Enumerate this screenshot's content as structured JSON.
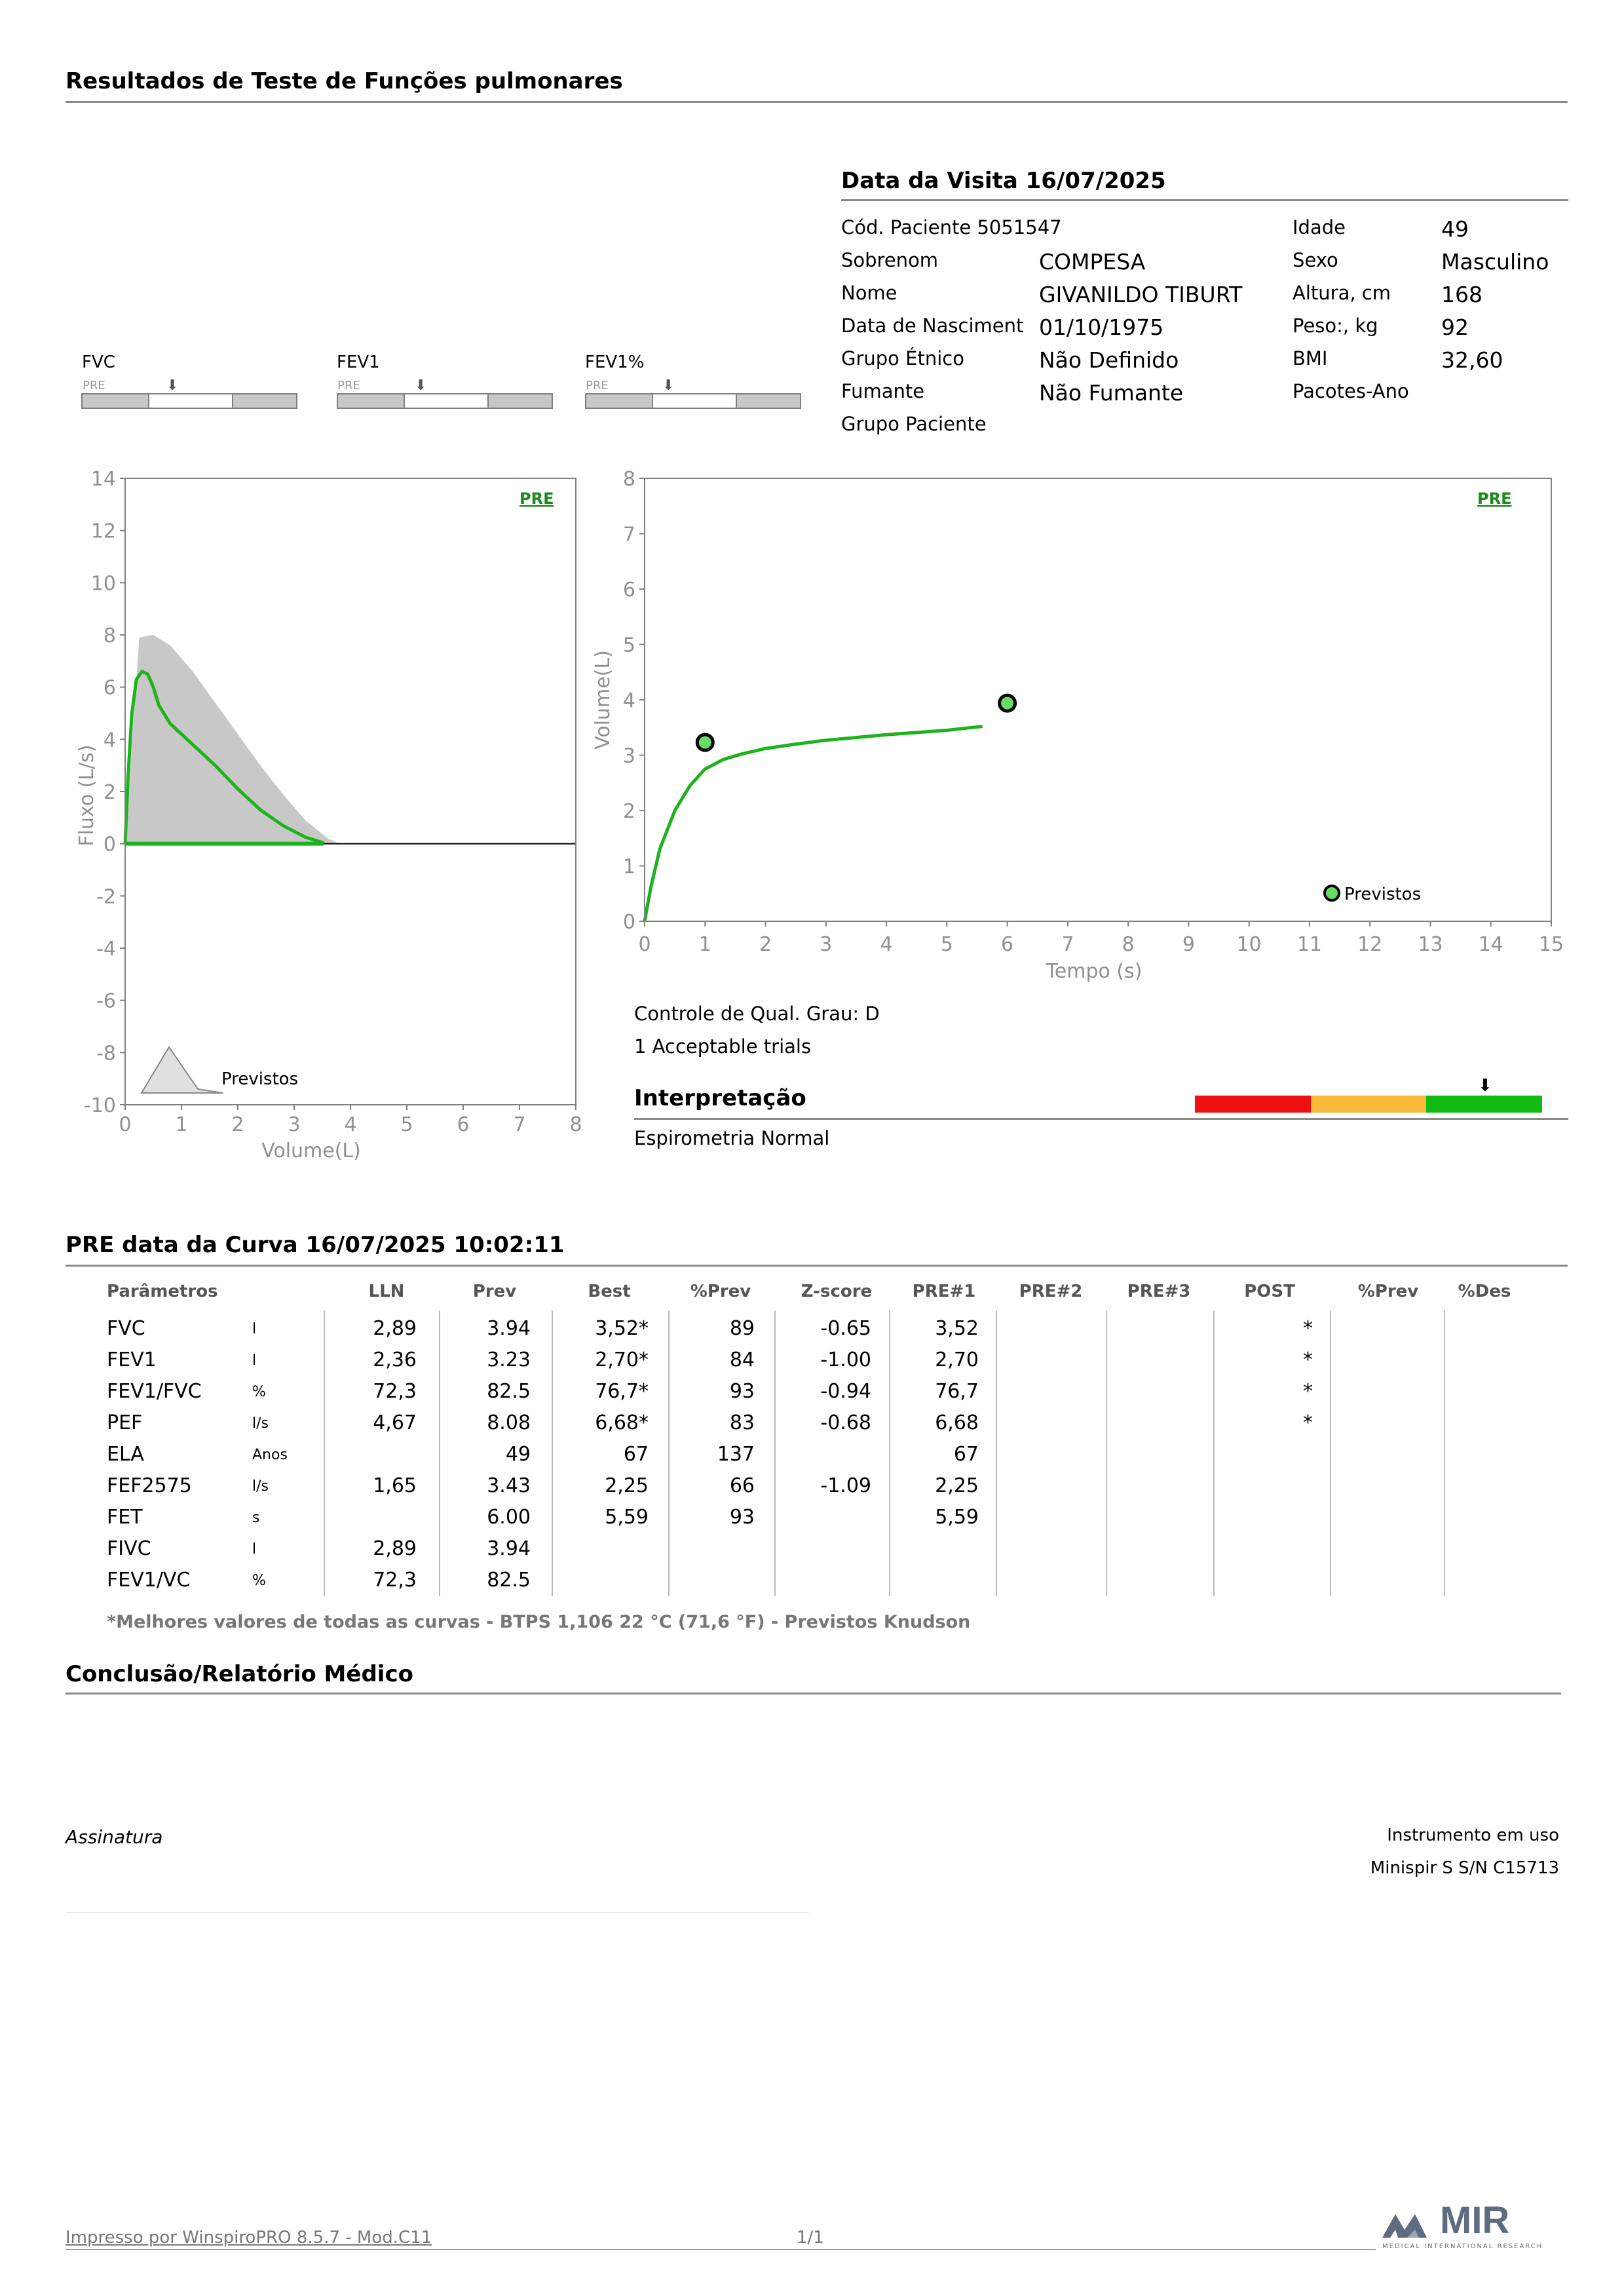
{
  "page_title": "Resultados de Teste de Funções pulmonares",
  "visit": {
    "title": "Data da Visita 16/07/2025",
    "fields_left": [
      {
        "label": "Cód. Paciente 5051547",
        "value": ""
      },
      {
        "label": "Sobrenom",
        "value": "COMPESA"
      },
      {
        "label": "Nome",
        "value": "GIVANILDO TIBURT"
      },
      {
        "label": "Data de Nasciment",
        "value": "01/10/1975"
      },
      {
        "label": "Grupo Étnico",
        "value": "Não Definido"
      },
      {
        "label": "Fumante",
        "value": "Não Fumante"
      },
      {
        "label": "Grupo Paciente",
        "value": ""
      }
    ],
    "fields_right": [
      {
        "label": "Idade",
        "value": "49"
      },
      {
        "label": "Sexo",
        "value": "Masculino"
      },
      {
        "label": "Altura, cm",
        "value": "168"
      },
      {
        "label": "Peso:, kg",
        "value": "92"
      },
      {
        "label": "BMI",
        "value": "32,60"
      },
      {
        "label": "Pacotes-Ano",
        "value": ""
      }
    ]
  },
  "indicators": [
    {
      "name": "FVC",
      "tag": "PRE"
    },
    {
      "name": "FEV1",
      "tag": "PRE"
    },
    {
      "name": "FEV1%",
      "tag": "PRE"
    }
  ],
  "chart_data": [
    {
      "type": "line",
      "title": "",
      "tag": "PRE",
      "xlabel": "Volume(L)",
      "ylabel": "Fluxo (L/s)",
      "xlim": [
        0,
        8
      ],
      "ylim": [
        -10,
        14
      ],
      "x_ticks": [
        "0",
        "1",
        "2",
        "3",
        "4",
        "5",
        "6",
        "7",
        "8"
      ],
      "y_ticks": [
        "14",
        "12",
        "10",
        "8",
        "6",
        "4",
        "2",
        "0",
        "-2",
        "-4",
        "-6",
        "-8",
        "-10"
      ],
      "legend": "Previstos",
      "series": [
        {
          "name": "Previstos",
          "color": "#c8c8c8",
          "x": [
            0,
            0.25,
            0.5,
            0.8,
            1.2,
            1.6,
            2.0,
            2.4,
            2.8,
            3.2,
            3.6,
            3.8
          ],
          "y": [
            0,
            7.9,
            8.0,
            7.6,
            6.6,
            5.4,
            4.2,
            3.0,
            1.9,
            0.9,
            0.2,
            0
          ]
        },
        {
          "name": "",
          "color": "#1db31d",
          "x": [
            0,
            0.05,
            0.12,
            0.2,
            0.3,
            0.4,
            0.5,
            0.6,
            0.8,
            1.0,
            1.3,
            1.6,
            2.0,
            2.4,
            2.8,
            3.2,
            3.5,
            3.52
          ],
          "y": [
            0,
            2.5,
            5.0,
            6.3,
            6.6,
            6.5,
            6.0,
            5.3,
            4.6,
            4.2,
            3.6,
            3.0,
            2.1,
            1.3,
            0.7,
            0.25,
            0.05,
            0
          ]
        }
      ]
    },
    {
      "type": "line",
      "title": "",
      "tag": "PRE",
      "xlabel": "Tempo (s)",
      "ylabel": "Volume(L)",
      "xlim": [
        0,
        15
      ],
      "ylim": [
        0,
        8
      ],
      "x_ticks": [
        "0",
        "1",
        "2",
        "3",
        "4",
        "5",
        "6",
        "7",
        "8",
        "9",
        "10",
        "11",
        "12",
        "13",
        "14",
        "15"
      ],
      "y_ticks": [
        "8",
        "7",
        "6",
        "5",
        "4",
        "3",
        "2",
        "1",
        "0"
      ],
      "legend": "Previstos",
      "series": [
        {
          "name": "",
          "color": "#1db31d",
          "x": [
            0,
            0.1,
            0.25,
            0.5,
            0.75,
            1.0,
            1.3,
            1.6,
            2.0,
            2.5,
            3.0,
            3.5,
            4.0,
            4.5,
            5.0,
            5.59
          ],
          "y": [
            0,
            0.6,
            1.3,
            2.0,
            2.45,
            2.75,
            2.92,
            3.02,
            3.12,
            3.2,
            3.27,
            3.32,
            3.37,
            3.41,
            3.45,
            3.52
          ]
        }
      ],
      "markers": [
        {
          "x": 1.0,
          "y": 3.23
        },
        {
          "x": 6.0,
          "y": 3.94
        }
      ]
    }
  ],
  "quality": {
    "grade": "Controle de Qual. Grau: D",
    "trials": "1 Acceptable trials"
  },
  "interpretation": {
    "title": "Interpretação",
    "text": "Espirometria Normal",
    "scale_colors": [
      "#ee1111",
      "#f9b93b",
      "#12bb12"
    ]
  },
  "curve": {
    "title": "PRE data da Curva 16/07/2025   10:02:11",
    "headers": [
      "Parâmetros",
      "LLN",
      "Prev",
      "Best",
      "%Prev",
      "Z-score",
      "PRE#1",
      "PRE#2",
      "PRE#3",
      "POST",
      "%Prev",
      "%Des"
    ],
    "rows": [
      {
        "param": "FVC",
        "unit": "l",
        "lln": "2,89",
        "prev": "3.94",
        "best": "3,52*",
        "pprev": "89",
        "z": "-0.65",
        "pre1": "3,52",
        "pre2": "",
        "pre3": "",
        "post": "*",
        "pprev2": "",
        "pdes": ""
      },
      {
        "param": "FEV1",
        "unit": "l",
        "lln": "2,36",
        "prev": "3.23",
        "best": "2,70*",
        "pprev": "84",
        "z": "-1.00",
        "pre1": "2,70",
        "pre2": "",
        "pre3": "",
        "post": "*",
        "pprev2": "",
        "pdes": ""
      },
      {
        "param": "FEV1/FVC",
        "unit": "%",
        "lln": "72,3",
        "prev": "82.5",
        "best": "76,7*",
        "pprev": "93",
        "z": "-0.94",
        "pre1": "76,7",
        "pre2": "",
        "pre3": "",
        "post": "*",
        "pprev2": "",
        "pdes": ""
      },
      {
        "param": "PEF",
        "unit": "l/s",
        "lln": "4,67",
        "prev": "8.08",
        "best": "6,68*",
        "pprev": "83",
        "z": "-0.68",
        "pre1": "6,68",
        "pre2": "",
        "pre3": "",
        "post": "*",
        "pprev2": "",
        "pdes": ""
      },
      {
        "param": "ELA",
        "unit": "Anos",
        "lln": "",
        "prev": "49",
        "best": "67",
        "pprev": "137",
        "z": "",
        "pre1": "67",
        "pre2": "",
        "pre3": "",
        "post": "",
        "pprev2": "",
        "pdes": ""
      },
      {
        "param": "FEF2575",
        "unit": "l/s",
        "lln": "1,65",
        "prev": "3.43",
        "best": "2,25",
        "pprev": "66",
        "z": "-1.09",
        "pre1": "2,25",
        "pre2": "",
        "pre3": "",
        "post": "",
        "pprev2": "",
        "pdes": ""
      },
      {
        "param": "FET",
        "unit": "s",
        "lln": "",
        "prev": "6.00",
        "best": "5,59",
        "pprev": "93",
        "z": "",
        "pre1": "5,59",
        "pre2": "",
        "pre3": "",
        "post": "",
        "pprev2": "",
        "pdes": ""
      },
      {
        "param": "FIVC",
        "unit": "l",
        "lln": "2,89",
        "prev": "3.94",
        "best": "",
        "pprev": "",
        "z": "",
        "pre1": "",
        "pre2": "",
        "pre3": "",
        "post": "",
        "pprev2": "",
        "pdes": ""
      },
      {
        "param": "FEV1/VC",
        "unit": "%",
        "lln": "72,3",
        "prev": "82.5",
        "best": "",
        "pprev": "",
        "z": "",
        "pre1": "",
        "pre2": "",
        "pre3": "",
        "post": "",
        "pprev2": "",
        "pdes": ""
      }
    ],
    "footnote": "*Melhores valores de todas as curvas - BTPS  1,106  22 °C  (71,6 °F) - Previstos Knudson"
  },
  "conclusion": {
    "title": "Conclusão/Relatório Médico"
  },
  "signature": {
    "label": "Assinatura"
  },
  "instrument": {
    "title": "Instrumento em uso",
    "name": "Minispir S S/N C15713"
  },
  "footer": {
    "printed_by": "Impresso por WinspiroPRO  8.5.7 - Mod.C11",
    "page": "1/1",
    "logo_text": "MIR",
    "logo_sub": "MEDICAL INTERNATIONAL RESEARCH"
  }
}
